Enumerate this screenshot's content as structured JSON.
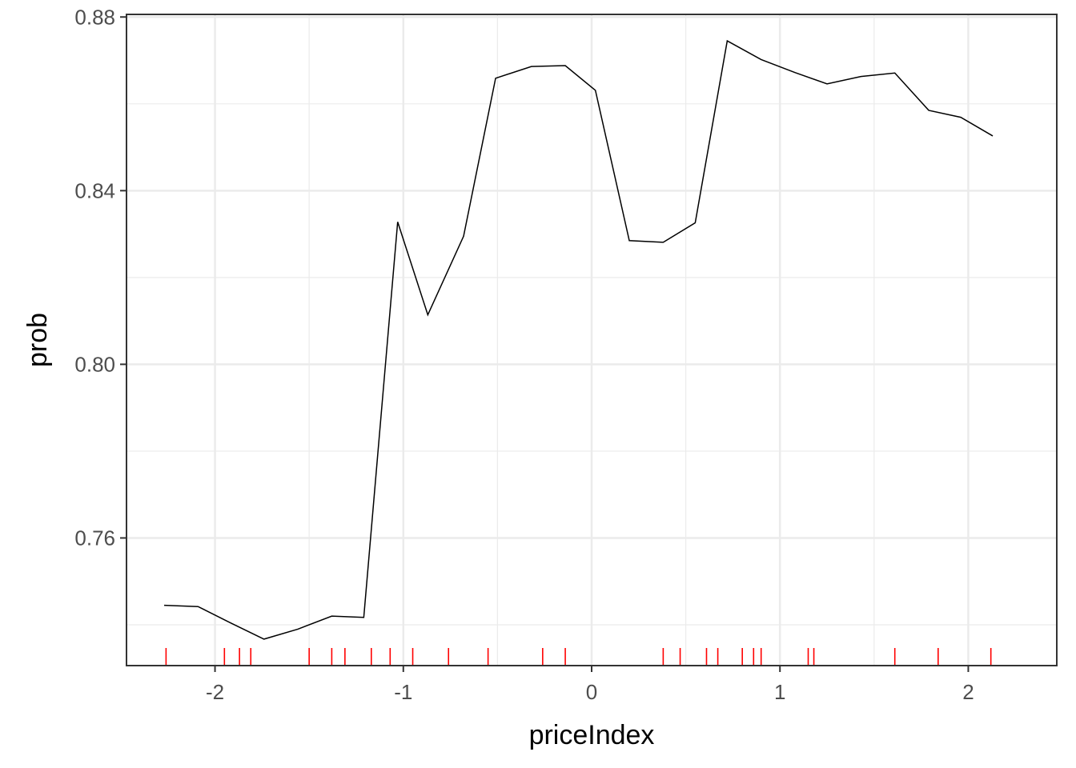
{
  "chart_data": {
    "type": "line",
    "xlabel": "priceIndex",
    "ylabel": "prob",
    "xlim": [
      -2.47,
      2.47
    ],
    "ylim": [
      0.7306,
      0.8806
    ],
    "x_ticks": [
      -2,
      -1,
      0,
      1,
      2
    ],
    "x_tick_labels": [
      "-2",
      "-1",
      "0",
      "1",
      "2"
    ],
    "y_ticks": [
      0.76,
      0.8,
      0.84,
      0.88
    ],
    "y_tick_labels": [
      "0.76",
      "0.80",
      "0.84",
      "0.88"
    ],
    "grid": true,
    "line_color": "#000000",
    "rug_color": "#ff0000",
    "series": [
      {
        "x": [
          -2.27,
          -2.09,
          -1.92,
          -1.74,
          -1.56,
          -1.38,
          -1.21,
          -1.03,
          -0.87,
          -0.68,
          -0.51,
          -0.32,
          -0.14,
          0.02,
          0.2,
          0.38,
          0.55,
          0.72,
          0.9,
          1.08,
          1.25,
          1.43,
          1.61,
          1.79,
          1.96,
          2.13
        ],
        "y": [
          0.7445,
          0.7442,
          0.7405,
          0.7367,
          0.739,
          0.742,
          0.7417,
          0.8328,
          0.8114,
          0.8295,
          0.8659,
          0.8686,
          0.8688,
          0.8631,
          0.8285,
          0.8281,
          0.8326,
          0.8745,
          0.8702,
          0.8672,
          0.8646,
          0.8663,
          0.8671,
          0.8585,
          0.8569,
          0.8526
        ]
      }
    ],
    "rug_x": [
      -2.26,
      -1.95,
      -1.87,
      -1.81,
      -1.5,
      -1.38,
      -1.31,
      -1.17,
      -1.07,
      -0.95,
      -0.76,
      -0.55,
      -0.26,
      -0.14,
      0.38,
      0.47,
      0.61,
      0.67,
      0.8,
      0.86,
      0.9,
      1.15,
      1.18,
      1.61,
      1.84,
      2.12
    ]
  }
}
